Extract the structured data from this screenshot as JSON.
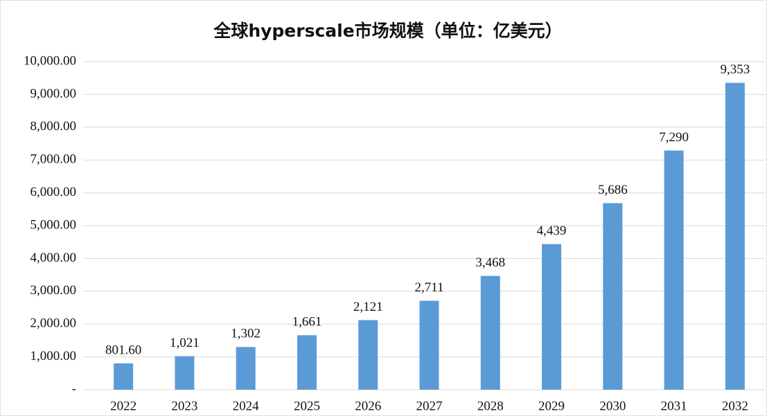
{
  "chart_data": {
    "type": "bar",
    "title": "全球hyperscale市场规模（单位：亿美元）",
    "categories": [
      "2022",
      "2023",
      "2024",
      "2025",
      "2026",
      "2027",
      "2028",
      "2029",
      "2030",
      "2031",
      "2032"
    ],
    "values": [
      801.6,
      1021,
      1302,
      1661,
      2121,
      2711,
      3468,
      4439,
      5686,
      7290,
      9353
    ],
    "value_labels": [
      "801.60",
      "1,021",
      "1,302",
      "1,661",
      "2,121",
      "2,711",
      "3,468",
      "4,439",
      "5,686",
      "7,290",
      "9,353"
    ],
    "color": "#5b9bd5",
    "ylim": [
      0,
      10000
    ],
    "yticks": [
      {
        "value": 0,
        "label": "-"
      },
      {
        "value": 1000,
        "label": "1,000.00"
      },
      {
        "value": 2000,
        "label": "2,000.00"
      },
      {
        "value": 3000,
        "label": "3,000.00"
      },
      {
        "value": 4000,
        "label": "4,000.00"
      },
      {
        "value": 5000,
        "label": "5,000.00"
      },
      {
        "value": 6000,
        "label": "6,000.00"
      },
      {
        "value": 7000,
        "label": "7,000.00"
      },
      {
        "value": 8000,
        "label": "8,000.00"
      },
      {
        "value": 9000,
        "label": "9,000.00"
      },
      {
        "value": 10000,
        "label": "10,000.00"
      }
    ],
    "grid": true
  }
}
